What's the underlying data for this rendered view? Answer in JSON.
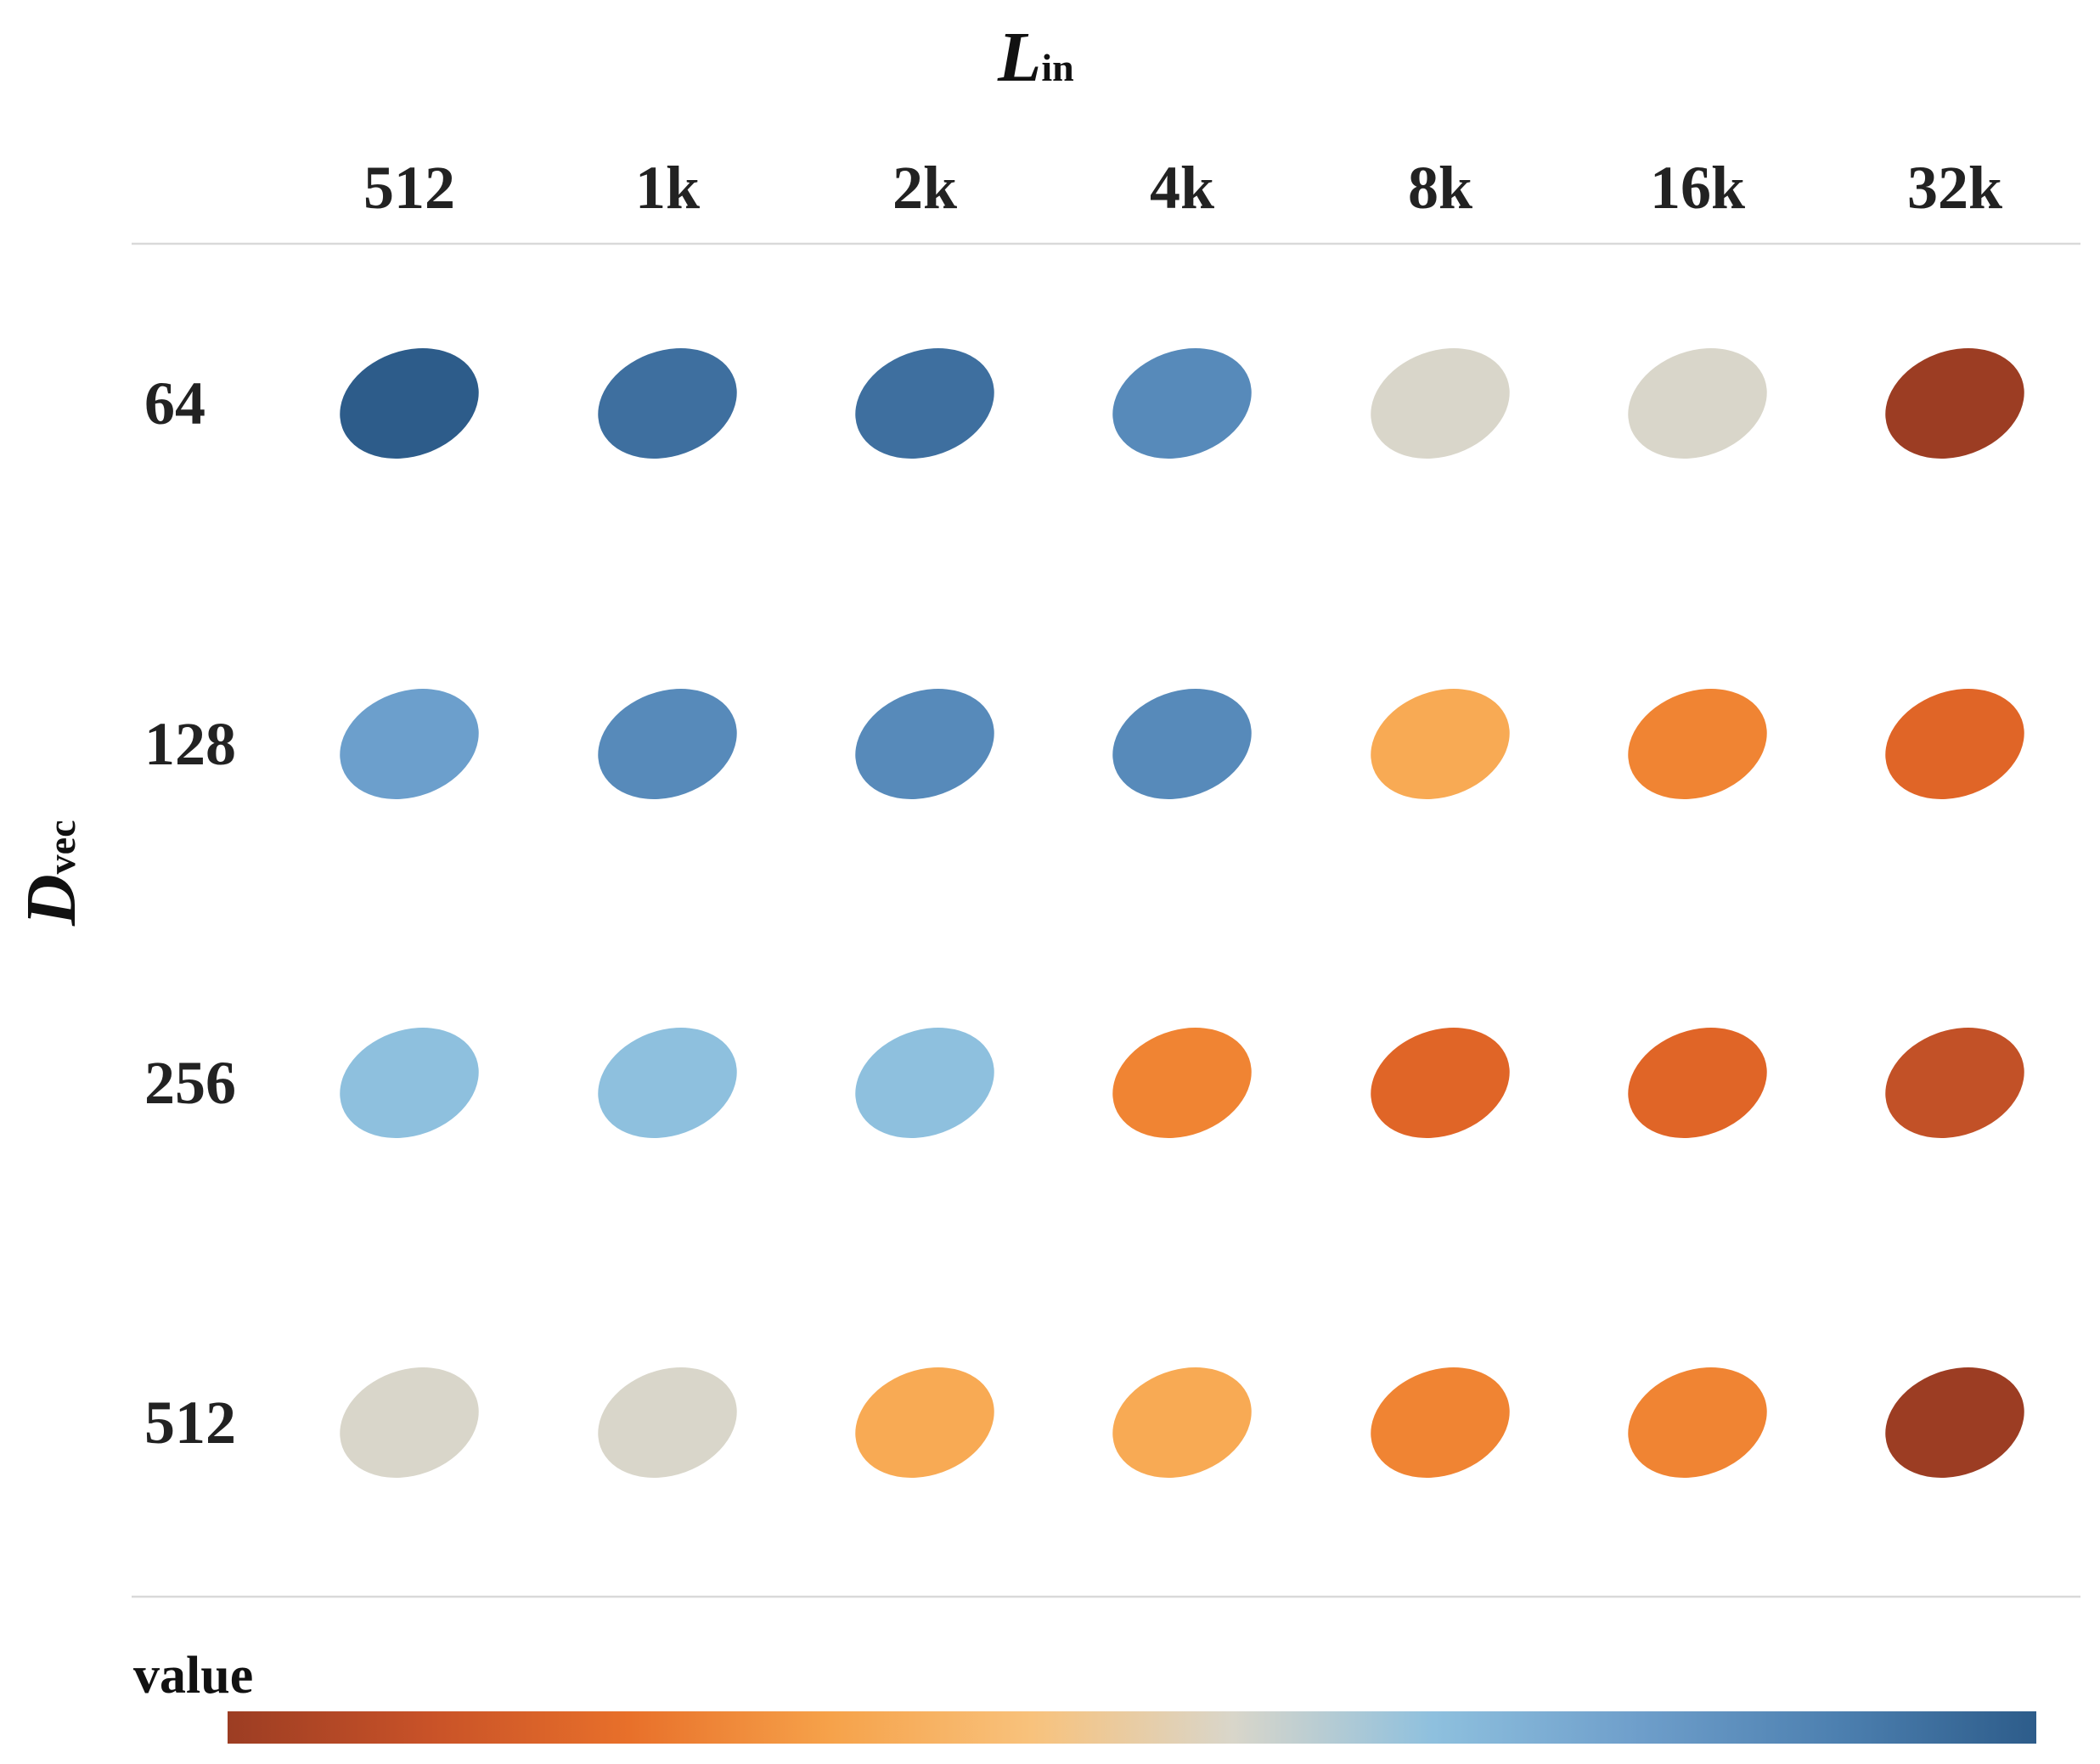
{
  "chart_data": {
    "type": "heatmap",
    "x_title": {
      "main": "L",
      "sub": "in"
    },
    "y_title": {
      "main": "D",
      "sub": "vec"
    },
    "x_categories": [
      "512",
      "1k",
      "2k",
      "4k",
      "8k",
      "16k",
      "32k"
    ],
    "y_categories": [
      "64",
      "128",
      "256",
      "512"
    ],
    "values": [
      [
        1.0,
        0.9,
        0.9,
        0.78,
        0.46,
        0.46,
        0.03
      ],
      [
        0.7,
        0.79,
        0.79,
        0.79,
        0.38,
        0.3,
        0.2
      ],
      [
        0.6,
        0.6,
        0.6,
        0.3,
        0.2,
        0.2,
        0.12
      ],
      [
        0.46,
        0.46,
        0.38,
        0.38,
        0.3,
        0.3,
        0.03
      ]
    ],
    "colors": [
      [
        "#2d5c8a",
        "#3e6f9f",
        "#3e6f9f",
        "#578aba",
        "#d9d6ca",
        "#d9d6ca",
        "#9c3d23"
      ],
      [
        "#6c9fcc",
        "#578aba",
        "#578aba",
        "#578aba",
        "#f8aa54",
        "#f08433",
        "#e06527"
      ],
      [
        "#8ec0de",
        "#8ec0de",
        "#8ec0de",
        "#f08433",
        "#e06527",
        "#e06527",
        "#c25127"
      ],
      [
        "#d9d6ca",
        "#d9d6ca",
        "#f8aa54",
        "#f8aa54",
        "#f08433",
        "#f08433",
        "#9c3d23"
      ]
    ],
    "legend": {
      "title": "value",
      "placement": "bottom",
      "gradient": [
        "#9c3d23",
        "#c85228",
        "#e8702a",
        "#f6a24a",
        "#f8c27c",
        "#d9d6ca",
        "#8ec0de",
        "#6f9fcb",
        "#4d80b0",
        "#2d5c8a"
      ]
    }
  }
}
